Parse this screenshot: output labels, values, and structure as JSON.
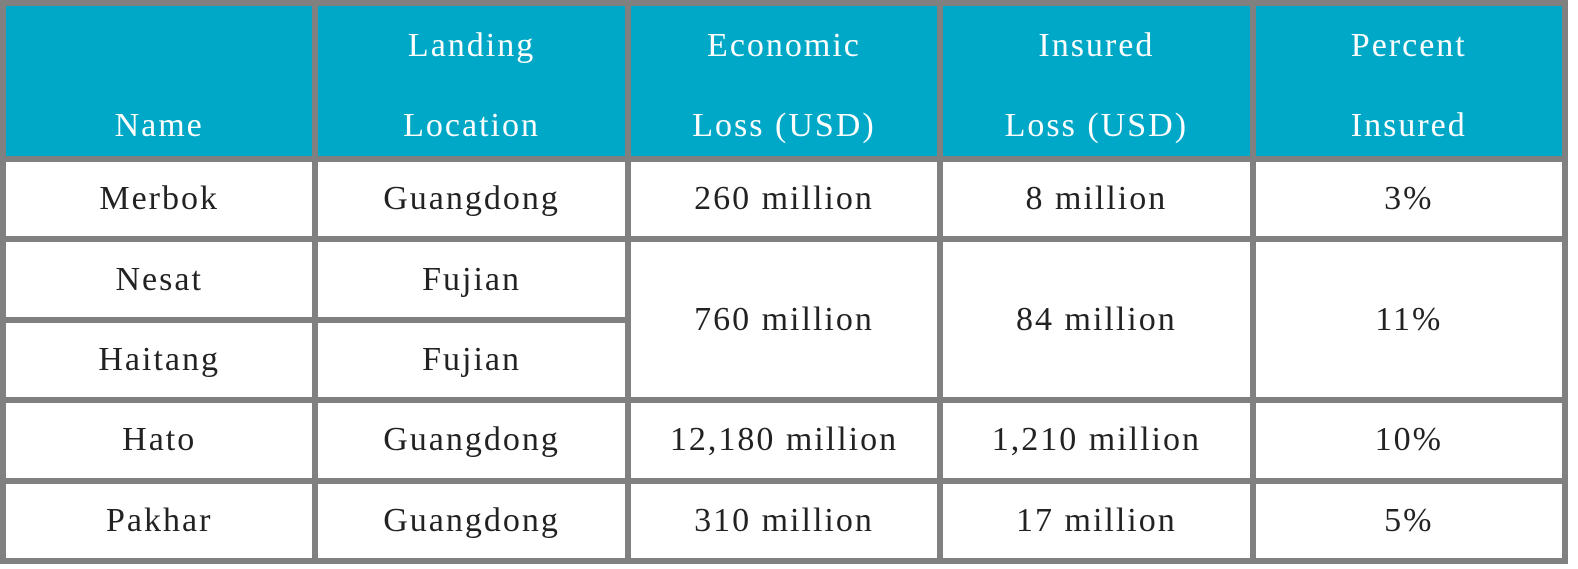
{
  "table": {
    "header": [
      [
        "Name"
      ],
      [
        "Landing",
        "Location"
      ],
      [
        "Economic",
        "Loss (USD)"
      ],
      [
        "Insured",
        "Loss (USD)"
      ],
      [
        "Percent",
        "Insured"
      ]
    ],
    "rows": [
      [
        "Merbok",
        "Guangdong",
        "260 million",
        "8 million",
        "3%"
      ],
      [
        "Nesat",
        "Fujian",
        "760 million",
        "84 million",
        "11%"
      ],
      [
        "Haitang",
        "Fujian"
      ],
      [
        "Hato",
        "Guangdong",
        "12,180 million",
        "1,210 million",
        "10%"
      ],
      [
        "Pakhar",
        "Guangdong",
        "310 million",
        "17 million",
        "5%"
      ]
    ]
  }
}
